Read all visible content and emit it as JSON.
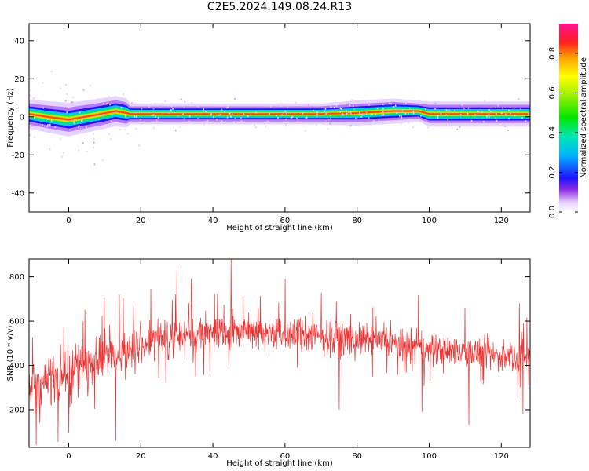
{
  "figure": {
    "title": "C2E5.2024.149.08.24.R13"
  },
  "chart_data": [
    {
      "type": "heatmap",
      "xlabel": "Height of straight line (km)",
      "ylabel": "Frequency (Hz)",
      "xlim": [
        -11,
        128
      ],
      "ylim": [
        -50,
        49
      ],
      "xticks": [
        0,
        20,
        40,
        60,
        80,
        100,
        120
      ],
      "yticks": [
        -40,
        -20,
        0,
        20,
        40
      ],
      "colorbar": {
        "label": "Normalized spectral amplitude",
        "ticks": [
          0.0,
          0.2,
          0.4,
          0.6,
          0.8
        ],
        "tick_labels": [
          "0.0",
          "0.2",
          "0.4",
          "0.6",
          "0.8"
        ],
        "range": [
          0,
          0.95
        ]
      },
      "band_center": [
        [
          -11,
          1.5
        ],
        [
          -6,
          0
        ],
        [
          0,
          -1.5
        ],
        [
          3,
          -0.5
        ],
        [
          6,
          0.5
        ],
        [
          9,
          1.5
        ],
        [
          13,
          3
        ],
        [
          16,
          2
        ],
        [
          17,
          1.5
        ],
        [
          50,
          1.5
        ],
        [
          70,
          1.5
        ],
        [
          80,
          2
        ],
        [
          90,
          3
        ],
        [
          97,
          3
        ],
        [
          100,
          1.5
        ],
        [
          128,
          1.5
        ]
      ],
      "band_halfwidth": [
        [
          -11,
          3.5
        ],
        [
          0,
          4
        ],
        [
          16,
          3.5
        ],
        [
          17,
          2.5
        ],
        [
          45,
          2.5
        ],
        [
          60,
          2.5
        ],
        [
          70,
          2.5
        ],
        [
          80,
          3
        ],
        [
          90,
          3
        ],
        [
          97,
          2.5
        ],
        [
          100,
          3
        ],
        [
          128,
          3
        ]
      ],
      "grid": false
    },
    {
      "type": "line",
      "xlabel": "Height of straight line (km)",
      "ylabel": "SNR (10 * v/v)",
      "xlim": [
        -11,
        128
      ],
      "ylim": [
        30,
        880
      ],
      "xticks": [
        0,
        20,
        40,
        60,
        80,
        100,
        120
      ],
      "yticks": [
        200,
        400,
        600,
        800
      ],
      "series": [
        {
          "color": "#ee3333",
          "trend": [
            [
              -11,
              300
            ],
            [
              -5,
              330
            ],
            [
              0,
              360
            ],
            [
              5,
              400
            ],
            [
              10,
              440
            ],
            [
              15,
              460
            ],
            [
              20,
              500
            ],
            [
              30,
              530
            ],
            [
              40,
              560
            ],
            [
              50,
              560
            ],
            [
              60,
              540
            ],
            [
              70,
              530
            ],
            [
              80,
              520
            ],
            [
              90,
              500
            ],
            [
              100,
              470
            ],
            [
              110,
              460
            ],
            [
              120,
              440
            ],
            [
              128,
              440
            ]
          ],
          "spread": [
            [
              -11,
              120
            ],
            [
              0,
              130
            ],
            [
              20,
              110
            ],
            [
              40,
              100
            ],
            [
              60,
              90
            ],
            [
              80,
              80
            ],
            [
              100,
              80
            ],
            [
              128,
              80
            ]
          ],
          "peaks": [
            [
              -8,
              140
            ],
            [
              0,
              95
            ],
            [
              4,
              600
            ],
            [
              14,
              720
            ],
            [
              30,
              840
            ],
            [
              34,
              790
            ],
            [
              45,
              878
            ],
            [
              60,
              790
            ],
            [
              97,
              718
            ],
            [
              125,
              680
            ]
          ],
          "troughs": [
            [
              -9,
              40
            ],
            [
              -3,
              55
            ],
            [
              13,
              60
            ],
            [
              75,
              200
            ],
            [
              98,
              190
            ],
            [
              111,
              130
            ],
            [
              126,
              180
            ]
          ],
          "n_points": 1400
        }
      ],
      "grid": false
    }
  ]
}
